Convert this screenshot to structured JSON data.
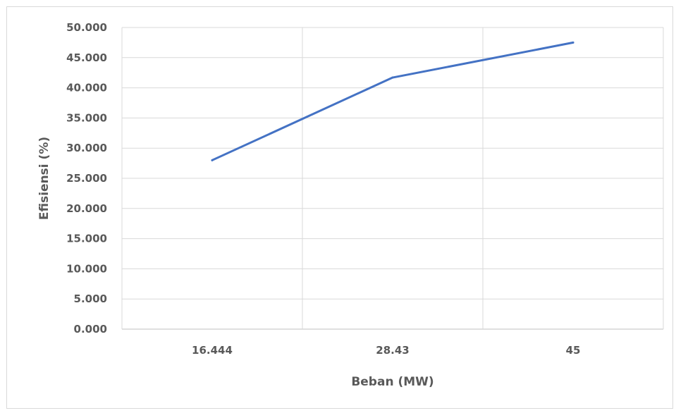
{
  "chart_data": {
    "type": "line",
    "title": "",
    "xlabel": "Beban (MW)",
    "ylabel": "Efisiensi (%)",
    "categories": [
      "16.444",
      "28.43",
      "45"
    ],
    "series": [
      {
        "values": [
          28.0,
          41.7,
          47.5
        ],
        "color": "#4472C4"
      }
    ],
    "ylim": [
      0,
      50
    ],
    "yticks": [
      "0.000",
      "5.000",
      "10.000",
      "15.000",
      "20.000",
      "25.000",
      "30.000",
      "35.000",
      "40.000",
      "45.000",
      "50.000"
    ],
    "grid": true,
    "legend": "none"
  }
}
